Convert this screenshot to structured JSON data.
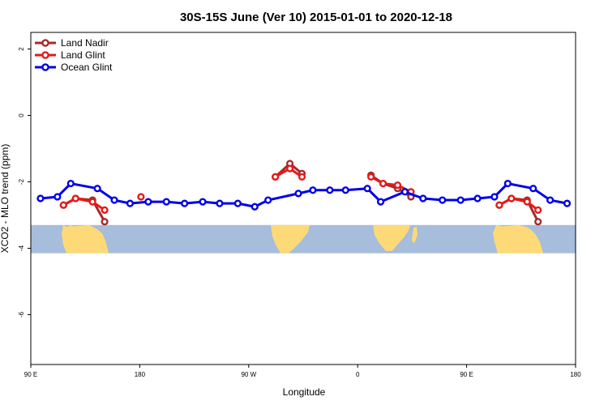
{
  "chart_data": {
    "type": "line",
    "title": "30S-15S June (Ver 10)   2015-01-01 to 2020-12-18",
    "xlabel": "Longitude",
    "ylabel": "XCO2 - MLO trend (ppm)",
    "xlim": [
      90,
      540
    ],
    "ylim": [
      -7.5,
      2.5
    ],
    "x_ticks": [
      {
        "value": 90,
        "label": "90 E"
      },
      {
        "value": 180,
        "label": "180"
      },
      {
        "value": 270,
        "label": "90 W"
      },
      {
        "value": 360,
        "label": "0"
      },
      {
        "value": 450,
        "label": "90 E"
      },
      {
        "value": 540,
        "label": "180"
      }
    ],
    "y_ticks": [
      {
        "value": 2,
        "label": "2"
      },
      {
        "value": 0,
        "label": "0"
      },
      {
        "value": -2,
        "label": "-2"
      },
      {
        "value": -4,
        "label": "-4"
      },
      {
        "value": -6,
        "label": "-6"
      }
    ],
    "grid": false,
    "legend_position": "top-left",
    "map_band": {
      "y_top": -3.3,
      "y_bottom": -4.15,
      "ocean_color": "#a6bddb",
      "land_color": "#fdd978"
    },
    "series": [
      {
        "name": "Land Nadir",
        "color": "#a52a2a",
        "segments": [
          [
            [
              117,
              -2.7
            ],
            [
              127,
              -2.5
            ],
            [
              141,
              -2.55
            ],
            [
              151,
              -3.2
            ]
          ],
          [
            [
              292,
              -1.85
            ],
            [
              304,
              -1.45
            ],
            [
              314,
              -1.75
            ]
          ],
          [
            [
              371,
              -1.8
            ],
            [
              381,
              -2.05
            ],
            [
              393,
              -2.2
            ],
            [
              404,
              -2.45
            ]
          ],
          [
            [
              477,
              -2.7
            ],
            [
              487,
              -2.5
            ],
            [
              500,
              -2.55
            ],
            [
              509,
              -3.2
            ]
          ]
        ]
      },
      {
        "name": "Land Glint",
        "color": "#e41a1a",
        "segments": [
          [
            [
              117,
              -2.7
            ],
            [
              127,
              -2.5
            ],
            [
              141,
              -2.6
            ],
            [
              151,
              -2.85
            ]
          ],
          [
            [
              181,
              -2.45
            ]
          ],
          [
            [
              292,
              -1.85
            ],
            [
              304,
              -1.6
            ],
            [
              314,
              -1.85
            ]
          ],
          [
            [
              371,
              -1.85
            ],
            [
              381,
              -2.05
            ],
            [
              393,
              -2.1
            ],
            [
              404,
              -2.3
            ]
          ],
          [
            [
              477,
              -2.7
            ],
            [
              487,
              -2.5
            ],
            [
              500,
              -2.6
            ],
            [
              509,
              -2.85
            ]
          ]
        ]
      },
      {
        "name": "Ocean Glint",
        "color": "#0000e6",
        "segments": [
          [
            [
              98,
              -2.5
            ],
            [
              112,
              -2.45
            ],
            [
              123,
              -2.05
            ],
            [
              145,
              -2.2
            ],
            [
              159,
              -2.55
            ],
            [
              172,
              -2.65
            ],
            [
              187,
              -2.6
            ],
            [
              202,
              -2.6
            ],
            [
              217,
              -2.65
            ],
            [
              232,
              -2.6
            ],
            [
              246,
              -2.65
            ],
            [
              261,
              -2.65
            ],
            [
              275,
              -2.75
            ],
            [
              286,
              -2.55
            ],
            [
              311,
              -2.35
            ],
            [
              323,
              -2.25
            ],
            [
              337,
              -2.25
            ],
            [
              350,
              -2.25
            ],
            [
              368,
              -2.2
            ],
            [
              379,
              -2.6
            ],
            [
              399,
              -2.3
            ],
            [
              414,
              -2.5
            ],
            [
              430,
              -2.55
            ],
            [
              445,
              -2.55
            ],
            [
              459,
              -2.5
            ],
            [
              473,
              -2.45
            ],
            [
              484,
              -2.05
            ],
            [
              505,
              -2.2
            ],
            [
              519,
              -2.55
            ],
            [
              533,
              -2.65
            ]
          ]
        ]
      }
    ]
  }
}
